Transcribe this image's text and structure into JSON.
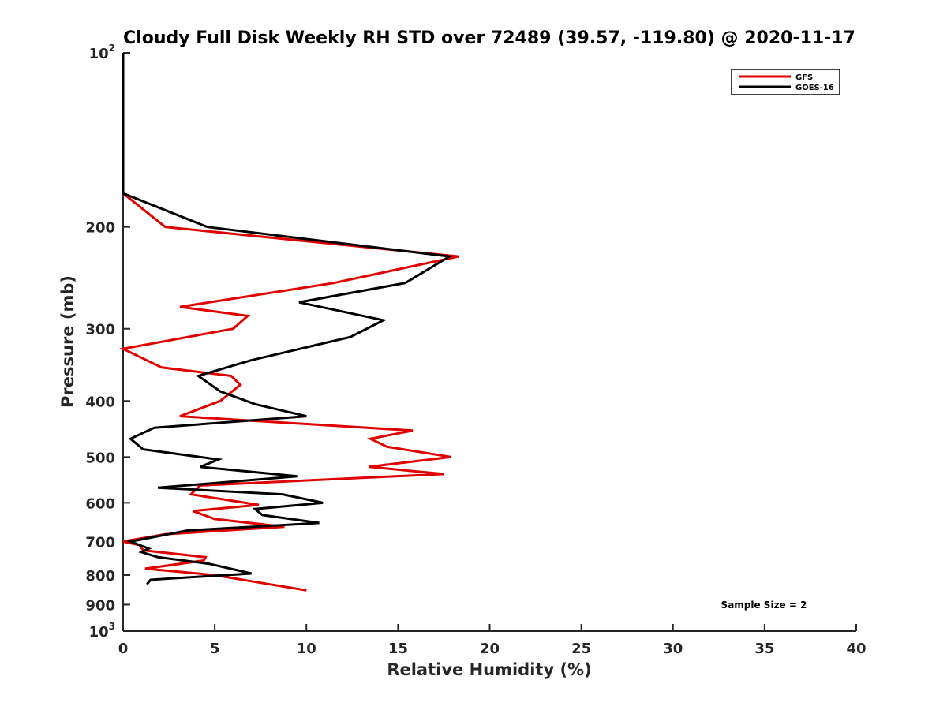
{
  "chart_data": {
    "type": "line",
    "title": "Cloudy Full Disk Weekly RH STD over 72489 (39.57, -119.80) @ 2020-11-17",
    "xlabel": "Relative Humidity (%)",
    "ylabel": "Pressure (mb)",
    "xlim": [
      0,
      40
    ],
    "ylim": [
      100,
      1000
    ],
    "yscale": "log",
    "y_reversed": true,
    "x_ticks": [
      "0",
      "5",
      "10",
      "15",
      "20",
      "25",
      "30",
      "35",
      "40"
    ],
    "x_tick_values": [
      0,
      5,
      10,
      15,
      20,
      25,
      30,
      35,
      40
    ],
    "y_ticks": [
      {
        "value": 100,
        "base": "10",
        "exp": "2"
      },
      {
        "value": 200,
        "base": "200",
        "exp": ""
      },
      {
        "value": 300,
        "base": "300",
        "exp": ""
      },
      {
        "value": 400,
        "base": "400",
        "exp": ""
      },
      {
        "value": 500,
        "base": "500",
        "exp": ""
      },
      {
        "value": 600,
        "base": "600",
        "exp": ""
      },
      {
        "value": 700,
        "base": "700",
        "exp": ""
      },
      {
        "value": 800,
        "base": "800",
        "exp": ""
      },
      {
        "value": 900,
        "base": "900",
        "exp": ""
      },
      {
        "value": 1000,
        "base": "10",
        "exp": "3"
      }
    ],
    "grid": false,
    "legend_position": "top-right",
    "annotation": "Sample Size = 2",
    "series": [
      {
        "name": "GFS",
        "color": "#e00000",
        "points": [
          [
            0,
            100
          ],
          [
            0,
            175
          ],
          [
            2.3,
            200
          ],
          [
            18.3,
            225
          ],
          [
            11.5,
            250
          ],
          [
            3.1,
            275
          ],
          [
            6.8,
            285
          ],
          [
            6.0,
            300
          ],
          [
            0,
            325
          ],
          [
            2.1,
            350
          ],
          [
            5.9,
            362
          ],
          [
            6.4,
            375
          ],
          [
            5.3,
            400
          ],
          [
            3.1,
            425
          ],
          [
            15.8,
            450
          ],
          [
            13.5,
            465
          ],
          [
            14.4,
            480
          ],
          [
            17.9,
            500
          ],
          [
            13.4,
            520
          ],
          [
            17.5,
            535
          ],
          [
            4.2,
            560
          ],
          [
            3.7,
            580
          ],
          [
            7.4,
            605
          ],
          [
            3.8,
            620
          ],
          [
            5.0,
            640
          ],
          [
            8.8,
            660
          ],
          [
            2.3,
            680
          ],
          [
            0,
            700
          ],
          [
            0.9,
            710
          ],
          [
            1.1,
            725
          ],
          [
            4.5,
            745
          ],
          [
            4.4,
            755
          ],
          [
            1.2,
            780
          ],
          [
            5.0,
            800
          ],
          [
            7.0,
            820
          ],
          [
            10.0,
            850
          ]
        ]
      },
      {
        "name": "GOES-16",
        "color": "#000000",
        "points": [
          [
            0,
            100
          ],
          [
            0,
            175
          ],
          [
            4.6,
            200
          ],
          [
            17.8,
            225
          ],
          [
            15.4,
            250
          ],
          [
            9.6,
            270
          ],
          [
            14.2,
            290
          ],
          [
            12.4,
            310
          ],
          [
            7.0,
            340
          ],
          [
            4.1,
            362
          ],
          [
            5.3,
            385
          ],
          [
            7.2,
            405
          ],
          [
            10.0,
            425
          ],
          [
            1.7,
            445
          ],
          [
            0.4,
            465
          ],
          [
            1.1,
            485
          ],
          [
            5.2,
            505
          ],
          [
            4.2,
            520
          ],
          [
            9.5,
            540
          ],
          [
            1.9,
            565
          ],
          [
            8.7,
            580
          ],
          [
            10.9,
            600
          ],
          [
            7.2,
            615
          ],
          [
            7.6,
            630
          ],
          [
            10.7,
            650
          ],
          [
            3.5,
            670
          ],
          [
            0.4,
            700
          ],
          [
            1.4,
            720
          ],
          [
            1.0,
            730
          ],
          [
            1.9,
            745
          ],
          [
            4.7,
            765
          ],
          [
            7.0,
            795
          ],
          [
            1.5,
            815
          ],
          [
            1.3,
            830
          ]
        ]
      }
    ]
  }
}
